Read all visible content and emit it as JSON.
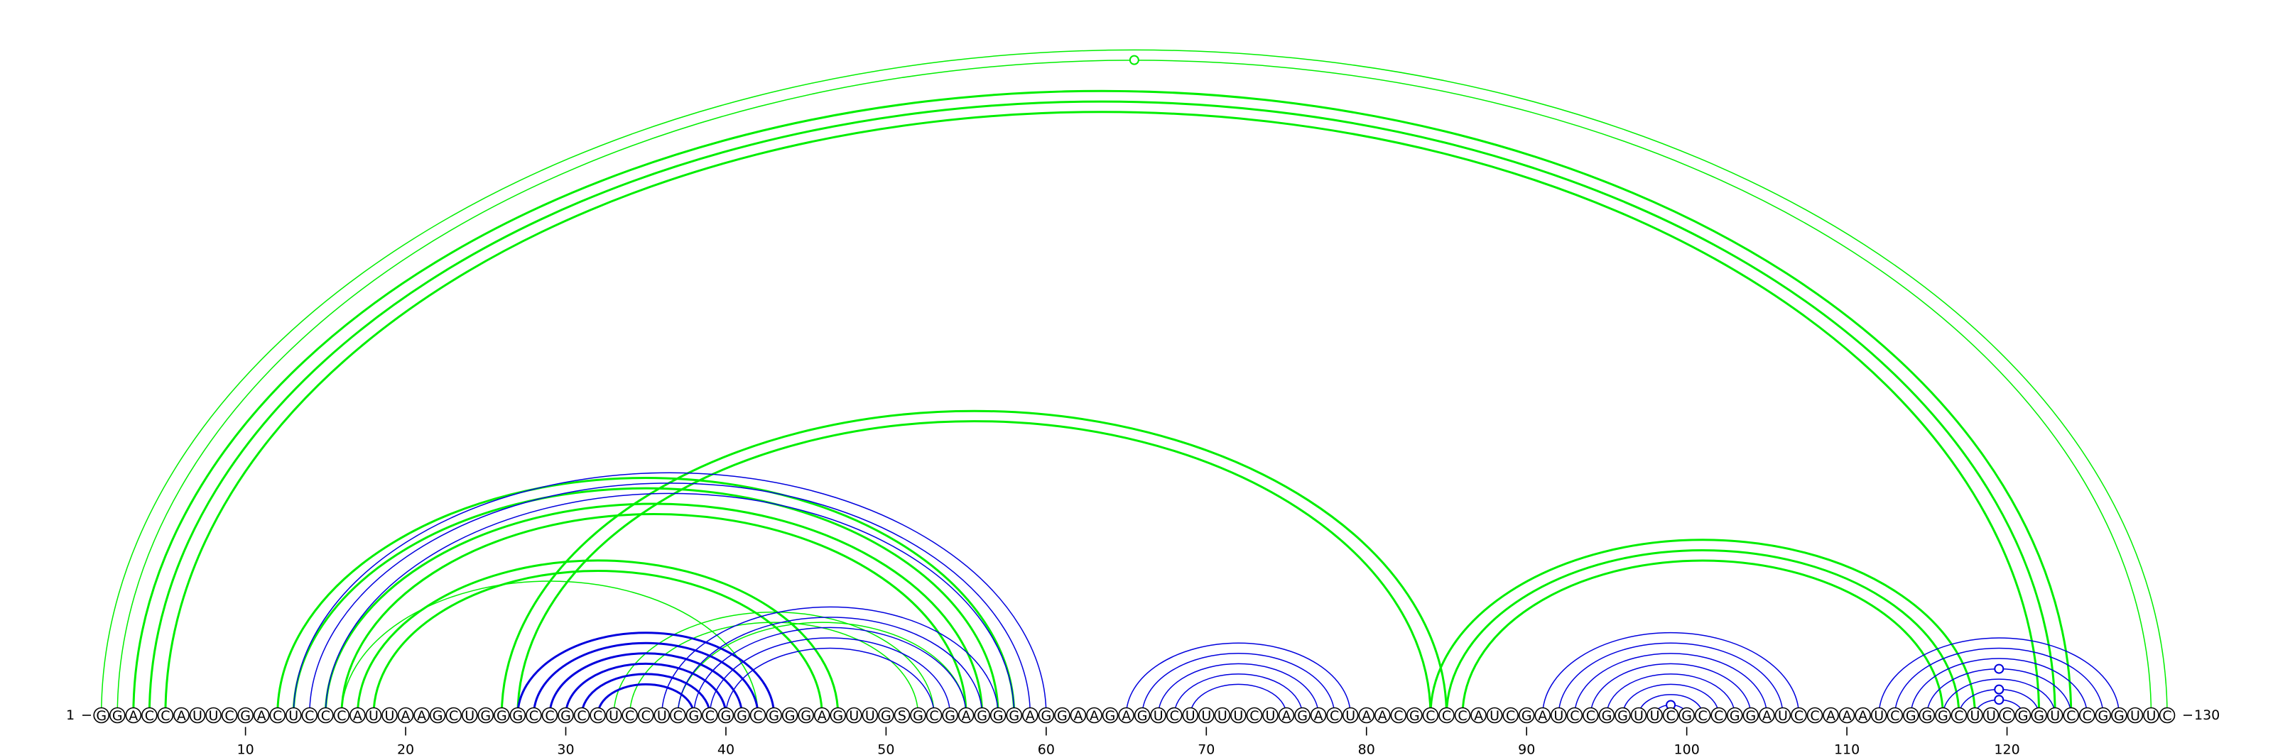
{
  "sequence": "GGACCAUUCGACUCCCAUUAAGCUGGGCCGCCUCCUCGCGGCGGGAGUUGSGCGAGGGAGGAAGAGUCUUUUCUAGACUAACGCCCAUCGAUCCGGUUCGCCGGAUCCAAAUCGGGCUUCGGUCCGGUUC",
  "start_label": "1",
  "end_label": "130",
  "ticks": [
    {
      "label": "10",
      "pos": 10
    },
    {
      "label": "20",
      "pos": 20
    },
    {
      "label": "30",
      "pos": 30
    },
    {
      "label": "40",
      "pos": 40
    },
    {
      "label": "50",
      "pos": 50
    },
    {
      "label": "60",
      "pos": 60
    },
    {
      "label": "70",
      "pos": 70
    },
    {
      "label": "80",
      "pos": 80
    },
    {
      "label": "90",
      "pos": 90
    },
    {
      "label": "100",
      "pos": 100
    },
    {
      "label": "110",
      "pos": 110
    },
    {
      "label": "120",
      "pos": 120
    }
  ],
  "colors": {
    "green": "#00ee00",
    "blue": "#0000dd",
    "text": "#000000"
  },
  "green_arcs": [
    [
      1,
      130,
      1.5
    ],
    [
      2,
      129,
      1.5
    ],
    [
      3,
      124,
      3
    ],
    [
      4,
      123,
      3
    ],
    [
      5,
      122,
      3
    ],
    [
      26,
      85,
      3
    ],
    [
      27,
      84,
      3
    ],
    [
      12,
      58,
      3
    ],
    [
      13,
      57,
      3
    ],
    [
      15,
      56,
      3
    ],
    [
      16,
      55,
      3
    ],
    [
      17,
      47,
      3
    ],
    [
      18,
      46,
      3
    ],
    [
      16,
      42,
      1.5
    ],
    [
      37,
      55,
      1.5
    ],
    [
      33,
      53,
      1.5
    ],
    [
      34,
      52,
      1.5
    ],
    [
      84,
      118,
      3
    ],
    [
      85,
      117,
      3
    ],
    [
      86,
      116,
      3
    ]
  ],
  "blue_arcs": [
    [
      13,
      60,
      1.5
    ],
    [
      14,
      59,
      1.5
    ],
    [
      15,
      58,
      1.5
    ],
    [
      27,
      43,
      3
    ],
    [
      28,
      42,
      3
    ],
    [
      29,
      41,
      3
    ],
    [
      30,
      40,
      3
    ],
    [
      31,
      39,
      3
    ],
    [
      32,
      38,
      3
    ],
    [
      36,
      57,
      1.5
    ],
    [
      37,
      56,
      1.5
    ],
    [
      38,
      55,
      1.5
    ],
    [
      39,
      54,
      1.5
    ],
    [
      40,
      53,
      1.5
    ],
    [
      65,
      79,
      1.5
    ],
    [
      66,
      78,
      1.5
    ],
    [
      67,
      77,
      1.5
    ],
    [
      68,
      76,
      1.5
    ],
    [
      69,
      75,
      1.5
    ],
    [
      91,
      107,
      1.5
    ],
    [
      92,
      106,
      1.5
    ],
    [
      93,
      105,
      1.5
    ],
    [
      94,
      104,
      1.5
    ],
    [
      95,
      103,
      1.5
    ],
    [
      96,
      102,
      1.5
    ],
    [
      97,
      101,
      1.5
    ],
    [
      98,
      100,
      1.5
    ],
    [
      112,
      127,
      1.5
    ],
    [
      113,
      126,
      1.5
    ],
    [
      114,
      125,
      1.5
    ],
    [
      115,
      124,
      1.5
    ],
    [
      116,
      123,
      1.5
    ],
    [
      117,
      122,
      1.5
    ],
    [
      118,
      121,
      1.5
    ]
  ],
  "markers": [
    {
      "a": 2,
      "b": 129,
      "color": "green"
    },
    {
      "a": 98,
      "b": 100,
      "color": "blue"
    },
    {
      "a": 118,
      "b": 121,
      "color": "blue"
    },
    {
      "a": 117,
      "b": 122,
      "color": "blue"
    },
    {
      "a": 115,
      "b": 124,
      "color": "blue"
    }
  ]
}
